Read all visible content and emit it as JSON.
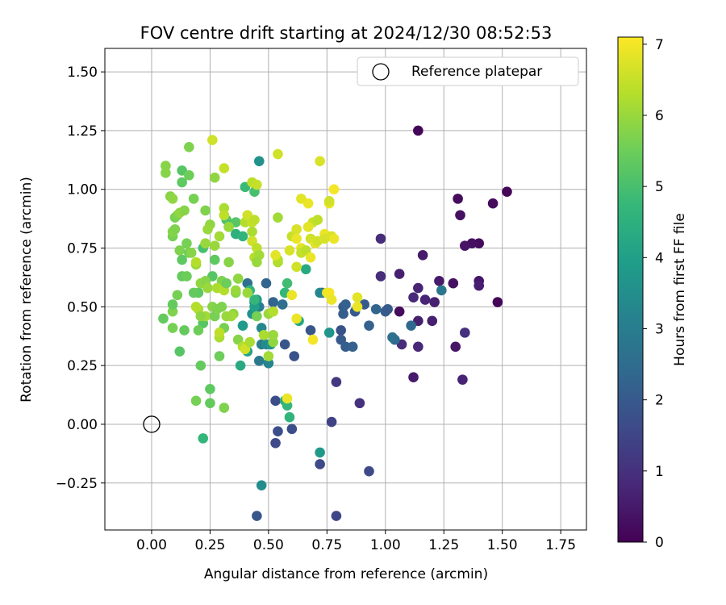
{
  "chart_data": {
    "type": "scatter",
    "title": "FOV centre drift starting at 2024/12/30 08:52:53",
    "xlabel": "Angular distance from reference (arcmin)",
    "ylabel": "Rotation from reference (arcmin)",
    "xlim": [
      -0.2,
      1.86
    ],
    "ylim": [
      -0.45,
      1.6
    ],
    "x_ticks": [
      "0.00",
      "0.25",
      "0.50",
      "0.75",
      "1.00",
      "1.25",
      "1.50",
      "1.75"
    ],
    "y_ticks": [
      "−0.25",
      "0.00",
      "0.25",
      "0.50",
      "0.75",
      "1.00",
      "1.25",
      "1.50"
    ],
    "grid": true,
    "legend": {
      "placement": "top-right",
      "entries": [
        "Reference platepar"
      ]
    },
    "reference_point": {
      "x": 0.0,
      "y": 0.0
    },
    "colorbar": {
      "label": "Hours from first FF file",
      "range": [
        0,
        7.1
      ],
      "ticks": [
        "0",
        "1",
        "2",
        "3",
        "4",
        "5",
        "6",
        "7"
      ],
      "colormap": "viridis",
      "stops": [
        "#440154",
        "#482878",
        "#3e4989",
        "#31688e",
        "#26828e",
        "#1f9e89",
        "#35b779",
        "#6ece58",
        "#b5de2b",
        "#fde725"
      ]
    },
    "points": [
      [
        1.14,
        1.25,
        0.1
      ],
      [
        1.52,
        0.99,
        0.1
      ],
      [
        1.31,
        0.96,
        0.2
      ],
      [
        1.46,
        0.94,
        0.2
      ],
      [
        1.32,
        0.89,
        0.3
      ],
      [
        1.4,
        0.77,
        0.2
      ],
      [
        1.37,
        0.77,
        0.3
      ],
      [
        1.34,
        0.76,
        0.4
      ],
      [
        1.16,
        0.72,
        0.5
      ],
      [
        1.4,
        0.61,
        0.4
      ],
      [
        1.23,
        0.61,
        0.5
      ],
      [
        1.4,
        0.59,
        0.6
      ],
      [
        1.29,
        0.6,
        0.3
      ],
      [
        1.48,
        0.52,
        0.1
      ],
      [
        1.21,
        0.52,
        0.6
      ],
      [
        1.14,
        0.58,
        0.7
      ],
      [
        1.17,
        0.53,
        0.7
      ],
      [
        1.12,
        0.54,
        0.8
      ],
      [
        1.06,
        0.64,
        0.6
      ],
      [
        0.98,
        0.79,
        0.9
      ],
      [
        0.98,
        0.63,
        0.9
      ],
      [
        1.06,
        0.48,
        0.2
      ],
      [
        1.2,
        0.44,
        0.6
      ],
      [
        1.14,
        0.44,
        0.6
      ],
      [
        1.34,
        0.39,
        1.0
      ],
      [
        1.3,
        0.33,
        0.4
      ],
      [
        1.14,
        0.33,
        0.8
      ],
      [
        1.07,
        0.34,
        0.9
      ],
      [
        1.12,
        0.2,
        0.5
      ],
      [
        1.33,
        0.19,
        0.7
      ],
      [
        0.89,
        0.09,
        1.0
      ],
      [
        0.79,
        0.18,
        1.2
      ],
      [
        0.77,
        0.01,
        1.4
      ],
      [
        0.93,
        -0.2,
        1.6
      ],
      [
        0.79,
        -0.39,
        1.5
      ],
      [
        0.45,
        -0.39,
        1.9
      ],
      [
        0.72,
        -0.17,
        1.6
      ],
      [
        0.53,
        -0.08,
        1.6
      ],
      [
        0.54,
        -0.03,
        1.7
      ],
      [
        0.6,
        -0.02,
        1.7
      ],
      [
        0.53,
        0.1,
        1.7
      ],
      [
        0.57,
        0.34,
        1.9
      ],
      [
        0.61,
        0.29,
        1.8
      ],
      [
        0.68,
        0.4,
        1.9
      ],
      [
        0.81,
        0.4,
        1.8
      ],
      [
        0.81,
        0.36,
        2.0
      ],
      [
        0.83,
        0.33,
        2.1
      ],
      [
        0.86,
        0.33,
        2.2
      ],
      [
        0.93,
        0.42,
        2.2
      ],
      [
        0.96,
        0.49,
        2.3
      ],
      [
        1.0,
        0.48,
        2.1
      ],
      [
        1.01,
        0.49,
        2.0
      ],
      [
        1.04,
        0.36,
        2.5
      ],
      [
        1.03,
        0.37,
        2.6
      ],
      [
        1.11,
        0.42,
        2.4
      ],
      [
        1.24,
        0.57,
        2.8
      ],
      [
        0.82,
        0.5,
        2.0
      ],
      [
        0.82,
        0.47,
        2.1
      ],
      [
        0.83,
        0.51,
        2.2
      ],
      [
        0.87,
        0.48,
        2.0
      ],
      [
        0.91,
        0.51,
        2.0
      ],
      [
        0.73,
        0.56,
        1.9
      ],
      [
        0.52,
        0.52,
        2.3
      ],
      [
        0.56,
        0.51,
        2.6
      ],
      [
        0.49,
        0.6,
        2.3
      ],
      [
        0.44,
        0.52,
        2.8
      ],
      [
        0.46,
        0.5,
        3.0
      ],
      [
        0.47,
        0.41,
        3.3
      ],
      [
        0.47,
        0.34,
        3.0
      ],
      [
        0.46,
        0.27,
        2.9
      ],
      [
        0.5,
        0.26,
        3.2
      ],
      [
        0.49,
        0.34,
        3.4
      ],
      [
        0.51,
        0.34,
        3.6
      ],
      [
        0.41,
        0.6,
        2.6
      ],
      [
        0.46,
        1.12,
        3.6
      ],
      [
        0.47,
        -0.26,
        3.5
      ],
      [
        0.72,
        -0.12,
        3.8
      ],
      [
        0.57,
        0.1,
        4.4
      ],
      [
        0.58,
        0.08,
        4.7
      ],
      [
        0.59,
        0.03,
        4.6
      ],
      [
        0.76,
        0.39,
        3.7
      ],
      [
        0.72,
        0.56,
        3.3
      ],
      [
        0.43,
        0.47,
        3.6
      ],
      [
        0.41,
        0.31,
        4.1
      ],
      [
        0.38,
        0.25,
        4.3
      ],
      [
        0.39,
        0.42,
        3.9
      ],
      [
        0.44,
        0.5,
        4.0
      ],
      [
        0.45,
        0.53,
        3.8
      ],
      [
        0.42,
        0.57,
        4.6
      ],
      [
        0.44,
        0.53,
        4.7
      ],
      [
        0.58,
        0.6,
        4.9
      ],
      [
        0.57,
        0.56,
        4.7
      ],
      [
        0.63,
        0.44,
        4.2
      ],
      [
        0.66,
        0.66,
        4.3
      ],
      [
        0.4,
        1.01,
        4.8
      ],
      [
        0.36,
        0.81,
        4.5
      ],
      [
        0.39,
        0.8,
        4.6
      ],
      [
        0.32,
        0.87,
        5.1
      ],
      [
        0.33,
        0.84,
        5.0
      ],
      [
        0.36,
        0.86,
        5.2
      ],
      [
        0.44,
        0.99,
        5.0
      ],
      [
        0.27,
        0.7,
        5.3
      ],
      [
        0.22,
        0.75,
        5.0
      ],
      [
        0.22,
        0.6,
        5.1
      ],
      [
        0.26,
        0.63,
        5.2
      ],
      [
        0.2,
        0.56,
        5.3
      ],
      [
        0.18,
        0.56,
        5.4
      ],
      [
        0.22,
        0.43,
        5.2
      ],
      [
        0.14,
        0.4,
        5.4
      ],
      [
        0.12,
        0.31,
        5.2
      ],
      [
        0.21,
        0.25,
        5.4
      ],
      [
        0.22,
        -0.06,
        4.7
      ],
      [
        0.25,
        0.09,
        5.4
      ],
      [
        0.25,
        0.15,
        5.3
      ],
      [
        0.19,
        0.1,
        5.6
      ],
      [
        0.31,
        0.07,
        5.7
      ],
      [
        0.29,
        0.29,
        5.5
      ],
      [
        0.2,
        0.4,
        5.5
      ],
      [
        0.09,
        0.41,
        5.6
      ],
      [
        0.09,
        0.48,
        5.7
      ],
      [
        0.05,
        0.45,
        5.4
      ],
      [
        0.09,
        0.51,
        5.4
      ],
      [
        0.11,
        0.55,
        5.6
      ],
      [
        0.13,
        0.63,
        5.4
      ],
      [
        0.15,
        0.63,
        5.5
      ],
      [
        0.13,
        0.7,
        5.3
      ],
      [
        0.09,
        0.8,
        5.6
      ],
      [
        0.09,
        0.82,
        5.8
      ],
      [
        0.1,
        0.83,
        5.7
      ],
      [
        0.12,
        0.74,
        5.7
      ],
      [
        0.16,
        0.73,
        5.5
      ],
      [
        0.15,
        0.77,
        5.6
      ],
      [
        0.17,
        0.73,
        5.8
      ],
      [
        0.1,
        0.88,
        5.6
      ],
      [
        0.11,
        0.89,
        5.7
      ],
      [
        0.12,
        0.9,
        5.9
      ],
      [
        0.14,
        0.91,
        5.8
      ],
      [
        0.08,
        0.97,
        5.8
      ],
      [
        0.09,
        0.96,
        5.9
      ],
      [
        0.13,
        1.03,
        5.3
      ],
      [
        0.13,
        1.08,
        5.2
      ],
      [
        0.16,
        1.06,
        5.5
      ],
      [
        0.18,
        0.96,
        5.6
      ],
      [
        0.06,
        1.1,
        5.8
      ],
      [
        0.06,
        1.07,
        5.8
      ],
      [
        0.16,
        1.18,
        5.7
      ],
      [
        0.27,
        1.05,
        5.9
      ],
      [
        0.23,
        0.91,
        5.7
      ],
      [
        0.25,
        0.85,
        5.9
      ],
      [
        0.24,
        0.83,
        6.0
      ],
      [
        0.23,
        0.77,
        6.0
      ],
      [
        0.27,
        0.76,
        6.0
      ],
      [
        0.29,
        0.8,
        6.1
      ],
      [
        0.33,
        0.84,
        6.0
      ],
      [
        0.31,
        0.92,
        6.2
      ],
      [
        0.31,
        0.89,
        6.4
      ],
      [
        0.26,
        1.21,
        6.6
      ],
      [
        0.31,
        1.09,
        6.5
      ],
      [
        0.19,
        0.68,
        6.0
      ],
      [
        0.19,
        0.69,
        6.3
      ],
      [
        0.21,
        0.6,
        5.9
      ],
      [
        0.23,
        0.61,
        5.8
      ],
      [
        0.24,
        0.58,
        6.0
      ],
      [
        0.2,
        0.49,
        6.2
      ],
      [
        0.19,
        0.5,
        6.3
      ],
      [
        0.23,
        0.46,
        6.1
      ],
      [
        0.21,
        0.46,
        5.9
      ],
      [
        0.26,
        0.5,
        5.8
      ],
      [
        0.27,
        0.46,
        5.6
      ],
      [
        0.28,
        0.49,
        5.7
      ],
      [
        0.3,
        0.5,
        5.7
      ],
      [
        0.3,
        0.61,
        5.7
      ],
      [
        0.28,
        0.58,
        6.2
      ],
      [
        0.31,
        0.57,
        6.3
      ],
      [
        0.32,
        0.6,
        5.5
      ],
      [
        0.36,
        0.56,
        5.8
      ],
      [
        0.36,
        0.57,
        6.0
      ],
      [
        0.35,
        0.47,
        5.9
      ],
      [
        0.34,
        0.46,
        6.1
      ],
      [
        0.32,
        0.46,
        6.0
      ],
      [
        0.31,
        0.41,
        5.6
      ],
      [
        0.29,
        0.37,
        6.2
      ],
      [
        0.29,
        0.39,
        6.4
      ],
      [
        0.37,
        0.36,
        5.8
      ],
      [
        0.39,
        0.33,
        6.3
      ],
      [
        0.4,
        0.32,
        6.6
      ],
      [
        0.42,
        0.35,
        6.2
      ],
      [
        0.33,
        0.69,
        5.8
      ],
      [
        0.37,
        0.62,
        5.9
      ],
      [
        0.41,
        0.56,
        6.0
      ],
      [
        0.4,
        0.86,
        6.3
      ],
      [
        0.41,
        0.89,
        6.6
      ],
      [
        0.43,
        0.86,
        6.5
      ],
      [
        0.44,
        0.87,
        6.4
      ],
      [
        0.43,
        0.82,
        6.2
      ],
      [
        0.43,
        0.78,
        6.6
      ],
      [
        0.44,
        0.71,
        6.3
      ],
      [
        0.45,
        0.75,
        6.4
      ],
      [
        0.46,
        0.72,
        6.1
      ],
      [
        0.45,
        0.69,
        6.0
      ],
      [
        0.43,
        1.03,
        6.4
      ],
      [
        0.45,
        1.02,
        6.5
      ],
      [
        0.48,
        0.38,
        6.2
      ],
      [
        0.45,
        0.46,
        5.6
      ],
      [
        0.5,
        0.29,
        6.1
      ],
      [
        0.52,
        0.35,
        5.9
      ],
      [
        0.52,
        0.38,
        6.0
      ],
      [
        0.5,
        0.47,
        6.0
      ],
      [
        0.52,
        0.48,
        6.3
      ],
      [
        0.54,
        0.69,
        6.2
      ],
      [
        0.54,
        0.7,
        6.3
      ],
      [
        0.54,
        0.88,
        6.1
      ],
      [
        0.54,
        1.15,
        6.6
      ],
      [
        0.58,
        0.11,
        6.9
      ],
      [
        0.6,
        0.55,
        6.9
      ],
      [
        0.53,
        0.72,
        6.8
      ],
      [
        0.59,
        0.74,
        6.7
      ],
      [
        0.6,
        0.8,
        6.5
      ],
      [
        0.62,
        0.83,
        6.7
      ],
      [
        0.62,
        0.79,
        6.9
      ],
      [
        0.64,
        0.75,
        6.8
      ],
      [
        0.62,
        0.67,
        6.6
      ],
      [
        0.64,
        0.73,
        6.5
      ],
      [
        0.66,
        0.74,
        6.4
      ],
      [
        0.68,
        0.71,
        6.9
      ],
      [
        0.68,
        0.79,
        6.6
      ],
      [
        0.69,
        0.86,
        6.5
      ],
      [
        0.7,
        0.77,
        6.8
      ],
      [
        0.71,
        0.78,
        6.6
      ],
      [
        0.71,
        0.87,
        6.4
      ],
      [
        0.72,
        1.12,
        6.7
      ],
      [
        0.74,
        0.81,
        6.9
      ],
      [
        0.76,
        0.94,
        6.9
      ],
      [
        0.76,
        0.95,
        6.6
      ],
      [
        0.77,
        0.8,
        6.7
      ],
      [
        0.78,
        0.79,
        6.9
      ],
      [
        0.78,
        1.0,
        7.0
      ],
      [
        0.64,
        0.96,
        6.8
      ],
      [
        0.67,
        0.94,
        6.9
      ],
      [
        0.67,
        0.84,
        6.8
      ],
      [
        0.74,
        0.79,
        6.7
      ],
      [
        0.75,
        0.56,
        6.9
      ],
      [
        0.76,
        0.56,
        7.0
      ],
      [
        0.77,
        0.53,
        6.9
      ],
      [
        0.69,
        0.36,
        7.0
      ],
      [
        0.88,
        0.5,
        6.9
      ],
      [
        0.88,
        0.54,
        6.8
      ],
      [
        0.62,
        0.45,
        6.9
      ]
    ]
  }
}
